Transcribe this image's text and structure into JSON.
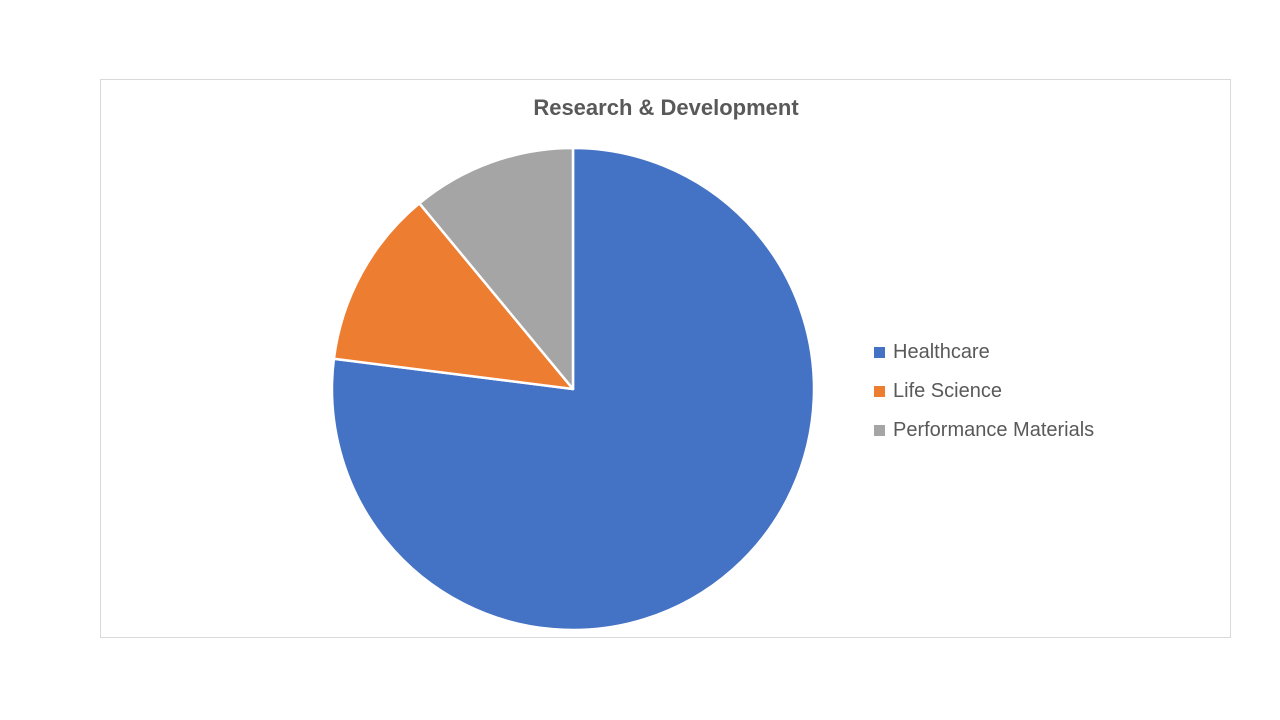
{
  "chart_data": {
    "type": "pie",
    "title": "Research & Development",
    "categories": [
      "Healthcare",
      "Life Science",
      "Performance Materials"
    ],
    "values": [
      77,
      12,
      11
    ],
    "unit": "%",
    "start_angle": "12 o'clock",
    "direction": "clockwise",
    "legend_position": "right",
    "colors": [
      "#4472C4",
      "#ED7D31",
      "#A5A5A5"
    ],
    "slice_border_color": "#ffffff"
  }
}
